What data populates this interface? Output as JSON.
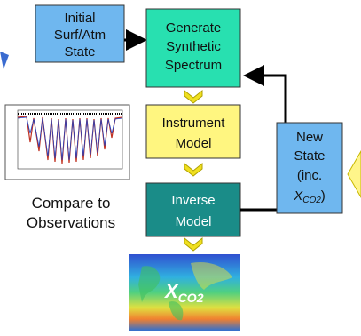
{
  "nodes": [
    {
      "lines": [
        "Initial",
        "Surf/Atm",
        "State"
      ]
    },
    {
      "lines": [
        "Generate",
        "Synthetic",
        "Spectrum"
      ]
    },
    {
      "lines": [
        "Instrument",
        "Model"
      ]
    },
    {
      "lines": [
        "Inverse",
        "Model"
      ]
    },
    {
      "lines": [
        "New",
        "State",
        "(inc."
      ],
      "symbol": "X",
      "subscript": "CO2",
      "suffix": ")"
    }
  ],
  "compare_label": [
    "Compare to",
    "Observations"
  ],
  "map_label": {
    "symbol": "X",
    "subscript": "CO2"
  }
}
